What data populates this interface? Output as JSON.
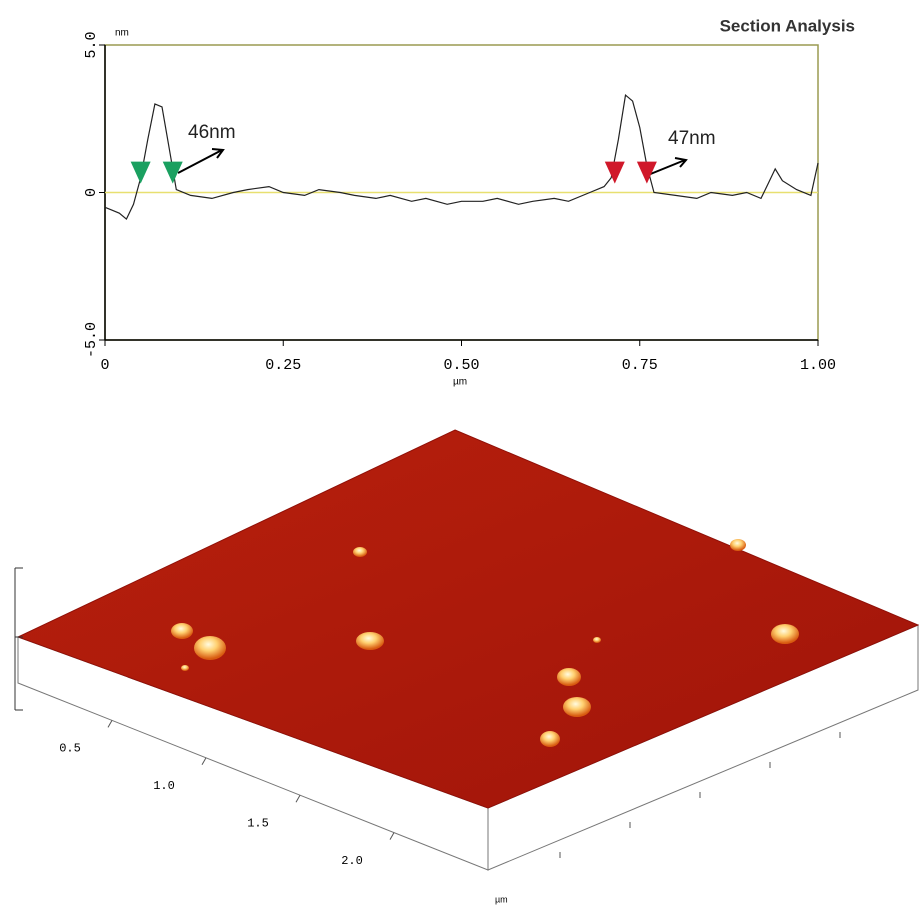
{
  "chart_data": [
    {
      "type": "line",
      "title": "Section Analysis",
      "ylabel": "nm",
      "xlabel": "µm",
      "xlim": [
        0,
        1
      ],
      "xticks": [
        0,
        0.25,
        {
          "value": 0.5,
          "label": "0.50"
        },
        0.75,
        {
          "value": 1,
          "label": "1.00"
        }
      ],
      "ylim": [
        -5,
        5
      ],
      "yticks": [
        {
          "value": -5,
          "label": "-5.0"
        },
        0,
        {
          "value": 5,
          "label": "5.0"
        }
      ],
      "color": "#222222",
      "x": [
        0,
        0.01,
        0.02,
        0.03,
        0.04,
        0.05,
        0.06,
        0.07,
        0.08,
        0.09,
        0.1,
        0.12,
        0.15,
        0.18,
        0.2,
        0.23,
        0.25,
        0.28,
        0.3,
        0.33,
        0.35,
        0.38,
        0.4,
        0.43,
        0.45,
        0.48,
        0.5,
        0.53,
        0.55,
        0.58,
        0.6,
        0.63,
        0.65,
        0.68,
        0.7,
        0.71,
        0.72,
        0.73,
        0.74,
        0.75,
        0.76,
        0.77,
        0.8,
        0.83,
        0.85,
        0.88,
        0.9,
        0.92,
        0.93,
        0.94,
        0.95,
        0.97,
        0.99,
        1
      ],
      "values": [
        -0.5,
        -0.6,
        -0.7,
        -0.9,
        -0.4,
        0.5,
        1.8,
        3,
        2.9,
        1.5,
        0.1,
        -0.1,
        -0.2,
        0,
        0.1,
        0.2,
        0,
        -0.1,
        0.1,
        0,
        -0.1,
        -0.2,
        -0.1,
        -0.3,
        -0.2,
        -0.4,
        -0.3,
        -0.3,
        -0.2,
        -0.4,
        -0.3,
        -0.2,
        -0.3,
        0,
        0.2,
        0.5,
        1.8,
        3.3,
        3.1,
        2.2,
        0.9,
        0,
        -0.1,
        -0.2,
        0,
        -0.1,
        0,
        -0.2,
        0.3,
        0.8,
        0.4,
        0.1,
        -0.1,
        1
      ],
      "markers": {
        "x": [
          0.05,
          0.095,
          0.715,
          0.76
        ],
        "values": [
          0.3,
          0.3,
          0.3,
          0.3
        ],
        "colors": [
          "#1aa060",
          "#1aa060",
          "#d0182a",
          "#d0182a"
        ]
      },
      "annotations": [
        "46nm",
        "47nm"
      ]
    },
    {
      "type": "surface3d",
      "xlabel": "µm",
      "xlim": [
        0,
        2.5
      ],
      "xticks": [
        0.5,
        {
          "value": 1,
          "label": "1.0"
        },
        1.5,
        {
          "value": 2,
          "label": "2.0"
        }
      ]
    }
  ]
}
